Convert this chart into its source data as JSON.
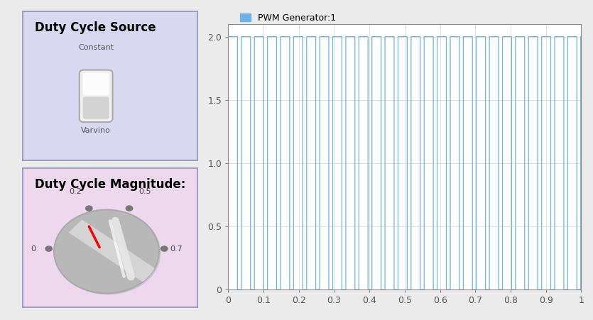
{
  "fig_width": 8.35,
  "fig_height": 4.51,
  "bg_color": "#ebebeb",
  "panel1": {
    "title": "Duty Cycle Source",
    "bg_color": "#d8d8f0",
    "border_color": "#9090b8",
    "label_constant": "Constant",
    "label_varying": "Varvino"
  },
  "panel2": {
    "title": "Duty Cycle Magnitude:",
    "bg_color": "#eed8ee",
    "border_color": "#9090b8"
  },
  "plot": {
    "legend_label": "PWM Generator:1",
    "legend_color": "#6cb4e8",
    "xlim": [
      0,
      1.0
    ],
    "ylim": [
      0,
      2.1
    ],
    "xticks": [
      0,
      0.1,
      0.2,
      0.3,
      0.4,
      0.5,
      0.6,
      0.7,
      0.8,
      0.9,
      1.0
    ],
    "yticks": [
      0,
      0.5,
      1.0,
      1.5,
      2.0
    ],
    "line_color": "#6cb4e8",
    "duty_cycle": 0.7,
    "period": 0.037,
    "amplitude": 2.0
  }
}
